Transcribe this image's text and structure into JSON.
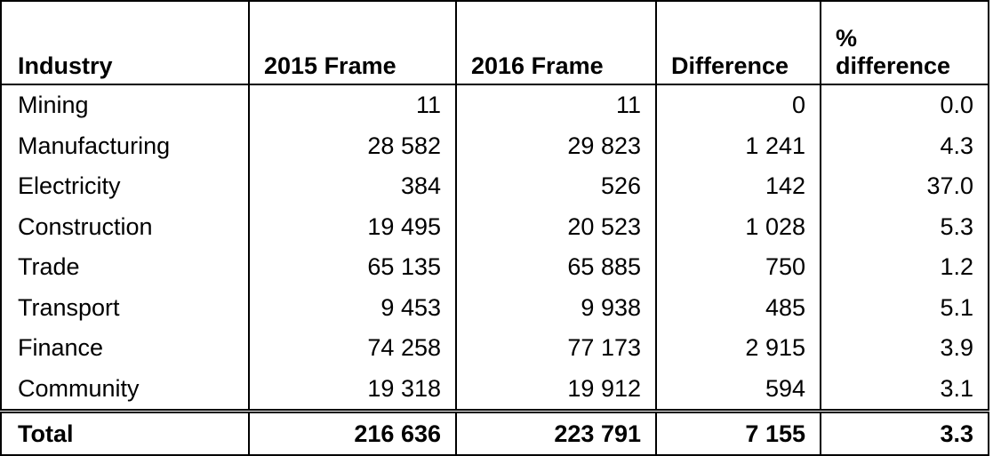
{
  "table": {
    "header": [
      "Industry",
      "2015 Frame",
      "2016 Frame",
      "Difference",
      "% difference"
    ],
    "rows": [
      [
        "Mining",
        "11",
        "11",
        "0",
        "0.0"
      ],
      [
        "Manufacturing",
        "28 582",
        "29 823",
        "1 241",
        "4.3"
      ],
      [
        "Electricity",
        "384",
        "526",
        "142",
        "37.0"
      ],
      [
        "Construction",
        "19 495",
        "20 523",
        "1 028",
        "5.3"
      ],
      [
        "Trade",
        "65 135",
        "65 885",
        "750",
        "1.2"
      ],
      [
        "Transport",
        "9 453",
        "9 938",
        "485",
        "5.1"
      ],
      [
        "Finance",
        "74 258",
        "77 173",
        "2 915",
        "3.9"
      ],
      [
        "Community",
        "19 318",
        "19 912",
        "594",
        "3.1"
      ]
    ],
    "total": [
      "Total",
      "216 636",
      "223 791",
      "7 155",
      "3.3"
    ]
  }
}
